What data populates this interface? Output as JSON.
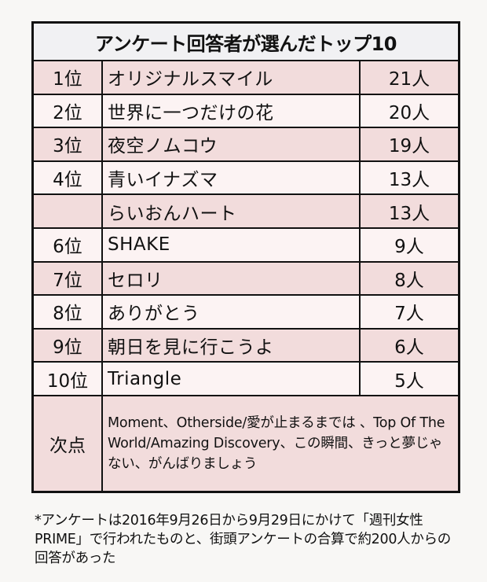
{
  "title": "アンケート回答者が選んだトップ10",
  "rows": [
    {
      "rank": "1位",
      "song": "オリジナルスマイル",
      "votes": "21人"
    },
    {
      "rank": "2位",
      "song": "世界に一つだけの花",
      "votes": "20人"
    },
    {
      "rank": "3位",
      "song": "夜空ノムコウ",
      "votes": "19人"
    },
    {
      "rank": "4位",
      "song": "青いイナズマ",
      "votes": "13人"
    },
    {
      "rank": "",
      "song": "らいおんハート",
      "votes": "13人"
    },
    {
      "rank": "6位",
      "song": "SHAKE",
      "votes": "9人"
    },
    {
      "rank": "7位",
      "song": "セロリ",
      "votes": "8人"
    },
    {
      "rank": "8位",
      "song": "ありがとう",
      "votes": "7人"
    },
    {
      "rank": "9位",
      "song": "朝日を見に行こうよ",
      "votes": "6人"
    },
    {
      "rank": "10位",
      "song": "Triangle",
      "votes": "5人"
    }
  ],
  "runner_up": {
    "label": "次点",
    "songs": "Moment、Otherside/愛が止まるまでは 、Top Of The World/Amazing Discovery、この瞬間、きっと夢じゃない、がんばりましょう"
  },
  "footnote": "*アンケートは2016年9月26日から9月29日にかけて「週刊女性PRIME」で行われたものと、街頭アンケートの合算で約200人からの回答があった",
  "colors": {
    "row_dark": "#f2dcdc",
    "row_light": "#fcf3f3",
    "header_bg": "#f1f1f3",
    "border": "#111111"
  }
}
